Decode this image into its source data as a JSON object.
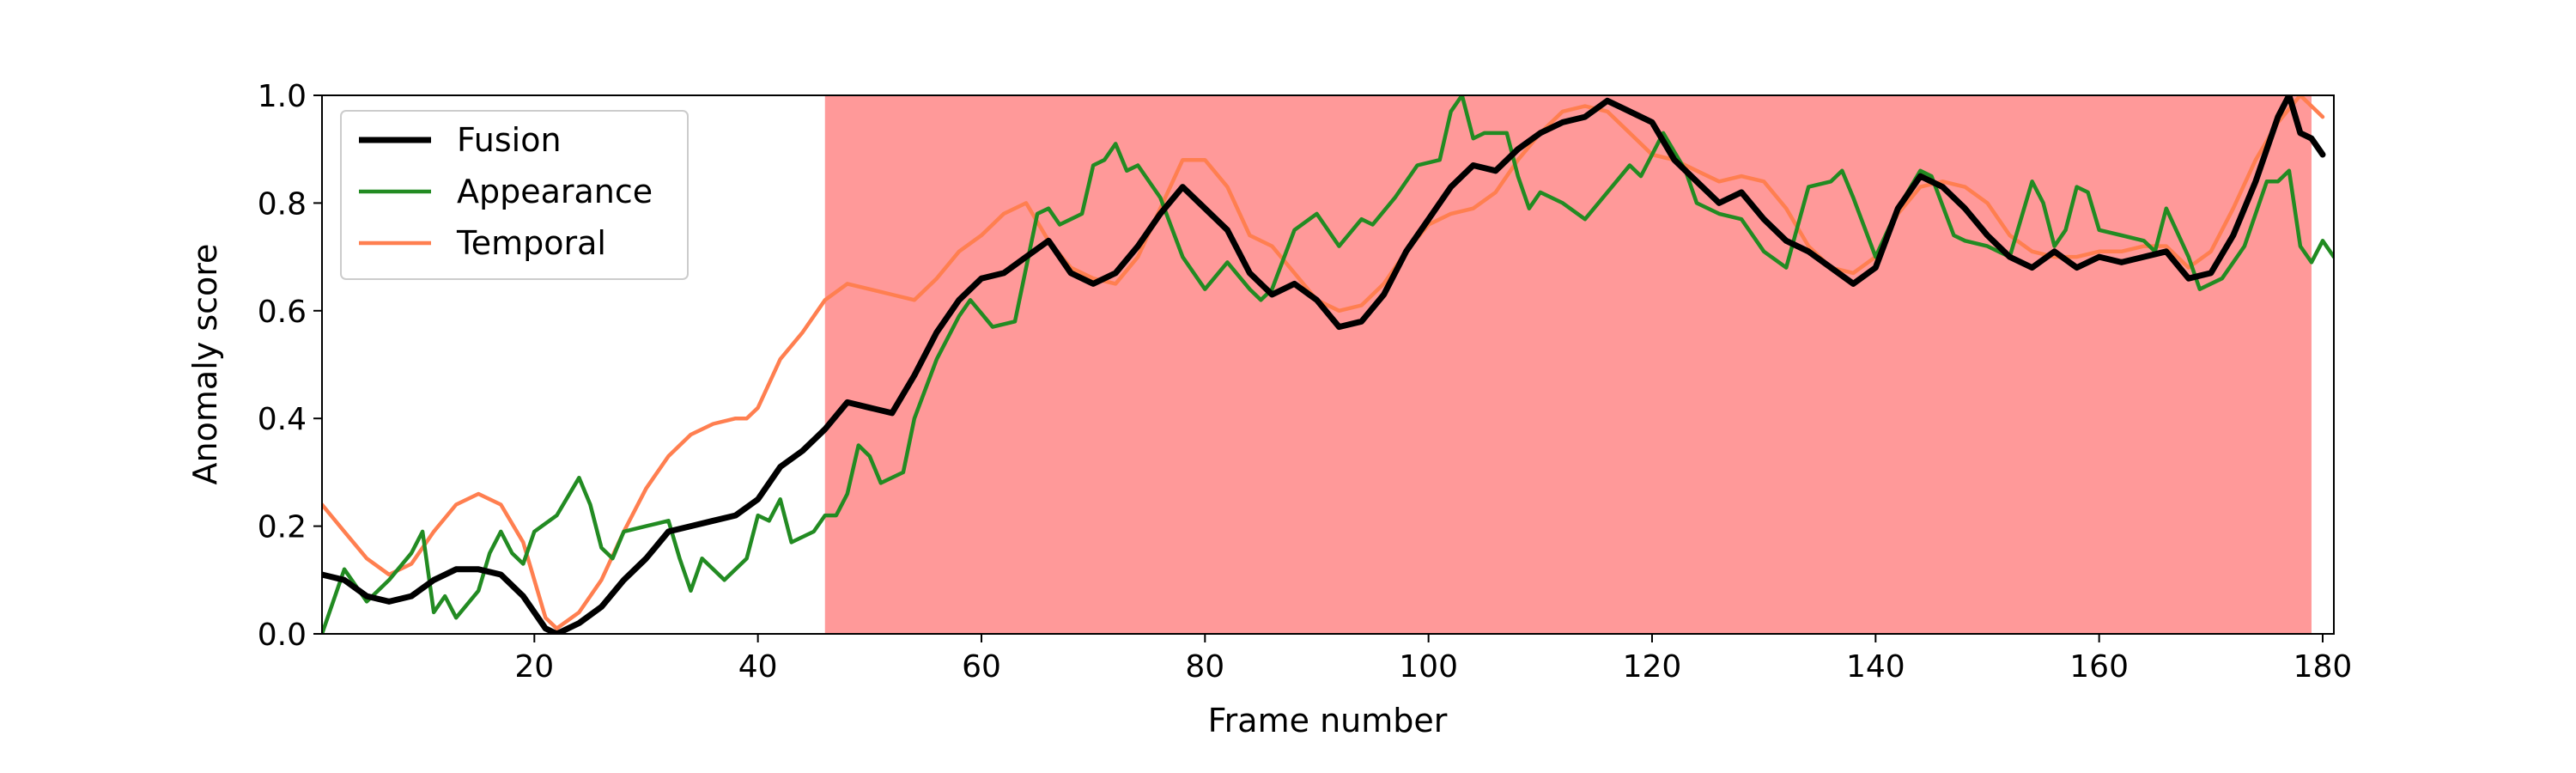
{
  "chart_data": {
    "type": "line",
    "xlabel": "Frame number",
    "ylabel": "Anomaly score",
    "xlim": [
      1,
      181
    ],
    "ylim": [
      0,
      1.0
    ],
    "x_ticks": [
      20,
      40,
      60,
      80,
      100,
      120,
      140,
      160,
      180
    ],
    "y_ticks": [
      "0.0",
      "0.2",
      "0.4",
      "0.6",
      "0.8",
      "1.0"
    ],
    "legend_position": "upper-left",
    "anomaly_region": {
      "x_start": 46,
      "x_end": 179,
      "color": "#ff9999"
    },
    "series": [
      {
        "name": "Fusion",
        "color": "#000000",
        "points": [
          [
            1,
            0.11
          ],
          [
            3,
            0.1
          ],
          [
            5,
            0.07
          ],
          [
            7,
            0.06
          ],
          [
            9,
            0.07
          ],
          [
            11,
            0.1
          ],
          [
            13,
            0.12
          ],
          [
            15,
            0.12
          ],
          [
            17,
            0.11
          ],
          [
            19,
            0.07
          ],
          [
            21,
            0.01
          ],
          [
            22,
            0.0
          ],
          [
            24,
            0.02
          ],
          [
            26,
            0.05
          ],
          [
            28,
            0.1
          ],
          [
            30,
            0.14
          ],
          [
            32,
            0.19
          ],
          [
            34,
            0.2
          ],
          [
            36,
            0.21
          ],
          [
            38,
            0.22
          ],
          [
            40,
            0.25
          ],
          [
            42,
            0.31
          ],
          [
            44,
            0.34
          ],
          [
            46,
            0.38
          ],
          [
            48,
            0.43
          ],
          [
            50,
            0.42
          ],
          [
            52,
            0.41
          ],
          [
            54,
            0.48
          ],
          [
            56,
            0.56
          ],
          [
            58,
            0.62
          ],
          [
            60,
            0.66
          ],
          [
            62,
            0.67
          ],
          [
            64,
            0.7
          ],
          [
            66,
            0.73
          ],
          [
            68,
            0.67
          ],
          [
            70,
            0.65
          ],
          [
            72,
            0.67
          ],
          [
            74,
            0.72
          ],
          [
            76,
            0.78
          ],
          [
            78,
            0.83
          ],
          [
            80,
            0.79
          ],
          [
            82,
            0.75
          ],
          [
            84,
            0.67
          ],
          [
            86,
            0.63
          ],
          [
            88,
            0.65
          ],
          [
            90,
            0.62
          ],
          [
            92,
            0.57
          ],
          [
            94,
            0.58
          ],
          [
            96,
            0.63
          ],
          [
            98,
            0.71
          ],
          [
            100,
            0.77
          ],
          [
            102,
            0.83
          ],
          [
            104,
            0.87
          ],
          [
            106,
            0.86
          ],
          [
            108,
            0.9
          ],
          [
            110,
            0.93
          ],
          [
            112,
            0.95
          ],
          [
            114,
            0.96
          ],
          [
            116,
            0.99
          ],
          [
            118,
            0.97
          ],
          [
            120,
            0.95
          ],
          [
            122,
            0.88
          ],
          [
            124,
            0.84
          ],
          [
            126,
            0.8
          ],
          [
            128,
            0.82
          ],
          [
            130,
            0.77
          ],
          [
            132,
            0.73
          ],
          [
            134,
            0.71
          ],
          [
            136,
            0.68
          ],
          [
            138,
            0.65
          ],
          [
            140,
            0.68
          ],
          [
            142,
            0.79
          ],
          [
            144,
            0.85
          ],
          [
            146,
            0.83
          ],
          [
            148,
            0.79
          ],
          [
            150,
            0.74
          ],
          [
            152,
            0.7
          ],
          [
            154,
            0.68
          ],
          [
            156,
            0.71
          ],
          [
            158,
            0.68
          ],
          [
            160,
            0.7
          ],
          [
            162,
            0.69
          ],
          [
            164,
            0.7
          ],
          [
            166,
            0.71
          ],
          [
            168,
            0.66
          ],
          [
            170,
            0.67
          ],
          [
            172,
            0.74
          ],
          [
            174,
            0.84
          ],
          [
            176,
            0.96
          ],
          [
            177,
            1.0
          ],
          [
            178,
            0.93
          ],
          [
            179,
            0.92
          ],
          [
            180,
            0.89
          ]
        ]
      },
      {
        "name": "Appearance",
        "color": "#228b22",
        "points": [
          [
            1,
            0.0
          ],
          [
            3,
            0.12
          ],
          [
            5,
            0.06
          ],
          [
            7,
            0.1
          ],
          [
            9,
            0.15
          ],
          [
            10,
            0.19
          ],
          [
            11,
            0.04
          ],
          [
            12,
            0.07
          ],
          [
            13,
            0.03
          ],
          [
            15,
            0.08
          ],
          [
            16,
            0.15
          ],
          [
            17,
            0.19
          ],
          [
            18,
            0.15
          ],
          [
            19,
            0.13
          ],
          [
            20,
            0.19
          ],
          [
            22,
            0.22
          ],
          [
            24,
            0.29
          ],
          [
            25,
            0.24
          ],
          [
            26,
            0.16
          ],
          [
            27,
            0.14
          ],
          [
            28,
            0.19
          ],
          [
            30,
            0.2
          ],
          [
            32,
            0.21
          ],
          [
            33,
            0.14
          ],
          [
            34,
            0.08
          ],
          [
            35,
            0.14
          ],
          [
            37,
            0.1
          ],
          [
            39,
            0.14
          ],
          [
            40,
            0.22
          ],
          [
            41,
            0.21
          ],
          [
            42,
            0.25
          ],
          [
            43,
            0.17
          ],
          [
            45,
            0.19
          ],
          [
            46,
            0.22
          ],
          [
            47,
            0.22
          ],
          [
            48,
            0.26
          ],
          [
            49,
            0.35
          ],
          [
            50,
            0.33
          ],
          [
            51,
            0.28
          ],
          [
            53,
            0.3
          ],
          [
            54,
            0.4
          ],
          [
            56,
            0.51
          ],
          [
            58,
            0.59
          ],
          [
            59,
            0.62
          ],
          [
            61,
            0.57
          ],
          [
            63,
            0.58
          ],
          [
            65,
            0.78
          ],
          [
            66,
            0.79
          ],
          [
            67,
            0.76
          ],
          [
            69,
            0.78
          ],
          [
            70,
            0.87
          ],
          [
            71,
            0.88
          ],
          [
            72,
            0.91
          ],
          [
            73,
            0.86
          ],
          [
            74,
            0.87
          ],
          [
            76,
            0.81
          ],
          [
            78,
            0.7
          ],
          [
            80,
            0.64
          ],
          [
            82,
            0.69
          ],
          [
            84,
            0.64
          ],
          [
            85,
            0.62
          ],
          [
            86,
            0.64
          ],
          [
            88,
            0.75
          ],
          [
            90,
            0.78
          ],
          [
            92,
            0.72
          ],
          [
            94,
            0.77
          ],
          [
            95,
            0.76
          ],
          [
            97,
            0.81
          ],
          [
            99,
            0.87
          ],
          [
            101,
            0.88
          ],
          [
            102,
            0.97
          ],
          [
            103,
            1.0
          ],
          [
            104,
            0.92
          ],
          [
            105,
            0.93
          ],
          [
            107,
            0.93
          ],
          [
            108,
            0.85
          ],
          [
            109,
            0.79
          ],
          [
            110,
            0.82
          ],
          [
            112,
            0.8
          ],
          [
            114,
            0.77
          ],
          [
            116,
            0.82
          ],
          [
            118,
            0.87
          ],
          [
            119,
            0.85
          ],
          [
            121,
            0.93
          ],
          [
            123,
            0.86
          ],
          [
            124,
            0.8
          ],
          [
            126,
            0.78
          ],
          [
            128,
            0.77
          ],
          [
            130,
            0.71
          ],
          [
            132,
            0.68
          ],
          [
            134,
            0.83
          ],
          [
            136,
            0.84
          ],
          [
            137,
            0.86
          ],
          [
            138,
            0.81
          ],
          [
            140,
            0.7
          ],
          [
            142,
            0.79
          ],
          [
            144,
            0.86
          ],
          [
            145,
            0.85
          ],
          [
            147,
            0.74
          ],
          [
            148,
            0.73
          ],
          [
            150,
            0.72
          ],
          [
            152,
            0.7
          ],
          [
            154,
            0.84
          ],
          [
            155,
            0.8
          ],
          [
            156,
            0.72
          ],
          [
            157,
            0.75
          ],
          [
            158,
            0.83
          ],
          [
            159,
            0.82
          ],
          [
            160,
            0.75
          ],
          [
            162,
            0.74
          ],
          [
            164,
            0.73
          ],
          [
            165,
            0.71
          ],
          [
            166,
            0.79
          ],
          [
            168,
            0.7
          ],
          [
            169,
            0.64
          ],
          [
            171,
            0.66
          ],
          [
            173,
            0.72
          ],
          [
            175,
            0.84
          ],
          [
            176,
            0.84
          ],
          [
            177,
            0.86
          ],
          [
            178,
            0.72
          ],
          [
            179,
            0.69
          ],
          [
            180,
            0.73
          ],
          [
            181,
            0.7
          ]
        ]
      },
      {
        "name": "Temporal",
        "color": "#ff7f50",
        "points": [
          [
            1,
            0.24
          ],
          [
            3,
            0.19
          ],
          [
            5,
            0.14
          ],
          [
            7,
            0.11
          ],
          [
            9,
            0.13
          ],
          [
            11,
            0.19
          ],
          [
            13,
            0.24
          ],
          [
            15,
            0.26
          ],
          [
            17,
            0.24
          ],
          [
            19,
            0.17
          ],
          [
            20,
            0.1
          ],
          [
            21,
            0.03
          ],
          [
            22,
            0.01
          ],
          [
            24,
            0.04
          ],
          [
            26,
            0.1
          ],
          [
            28,
            0.19
          ],
          [
            30,
            0.27
          ],
          [
            32,
            0.33
          ],
          [
            34,
            0.37
          ],
          [
            36,
            0.39
          ],
          [
            38,
            0.4
          ],
          [
            39,
            0.4
          ],
          [
            40,
            0.42
          ],
          [
            42,
            0.51
          ],
          [
            44,
            0.56
          ],
          [
            46,
            0.62
          ],
          [
            48,
            0.65
          ],
          [
            50,
            0.64
          ],
          [
            52,
            0.63
          ],
          [
            54,
            0.62
          ],
          [
            56,
            0.66
          ],
          [
            58,
            0.71
          ],
          [
            60,
            0.74
          ],
          [
            62,
            0.78
          ],
          [
            64,
            0.8
          ],
          [
            66,
            0.73
          ],
          [
            68,
            0.68
          ],
          [
            70,
            0.66
          ],
          [
            72,
            0.65
          ],
          [
            74,
            0.7
          ],
          [
            76,
            0.79
          ],
          [
            78,
            0.88
          ],
          [
            80,
            0.88
          ],
          [
            82,
            0.83
          ],
          [
            84,
            0.74
          ],
          [
            86,
            0.72
          ],
          [
            88,
            0.67
          ],
          [
            90,
            0.62
          ],
          [
            92,
            0.6
          ],
          [
            94,
            0.61
          ],
          [
            96,
            0.65
          ],
          [
            98,
            0.71
          ],
          [
            100,
            0.76
          ],
          [
            102,
            0.78
          ],
          [
            104,
            0.79
          ],
          [
            106,
            0.82
          ],
          [
            108,
            0.88
          ],
          [
            110,
            0.93
          ],
          [
            112,
            0.97
          ],
          [
            114,
            0.98
          ],
          [
            116,
            0.97
          ],
          [
            118,
            0.93
          ],
          [
            120,
            0.89
          ],
          [
            122,
            0.88
          ],
          [
            124,
            0.86
          ],
          [
            126,
            0.84
          ],
          [
            128,
            0.85
          ],
          [
            130,
            0.84
          ],
          [
            132,
            0.79
          ],
          [
            134,
            0.72
          ],
          [
            136,
            0.68
          ],
          [
            138,
            0.67
          ],
          [
            140,
            0.7
          ],
          [
            142,
            0.78
          ],
          [
            144,
            0.83
          ],
          [
            146,
            0.84
          ],
          [
            148,
            0.83
          ],
          [
            150,
            0.8
          ],
          [
            152,
            0.74
          ],
          [
            154,
            0.71
          ],
          [
            156,
            0.7
          ],
          [
            158,
            0.7
          ],
          [
            160,
            0.71
          ],
          [
            162,
            0.71
          ],
          [
            164,
            0.72
          ],
          [
            166,
            0.72
          ],
          [
            168,
            0.68
          ],
          [
            170,
            0.71
          ],
          [
            172,
            0.79
          ],
          [
            174,
            0.88
          ],
          [
            176,
            0.95
          ],
          [
            178,
            1.0
          ],
          [
            180,
            0.96
          ]
        ]
      }
    ]
  }
}
